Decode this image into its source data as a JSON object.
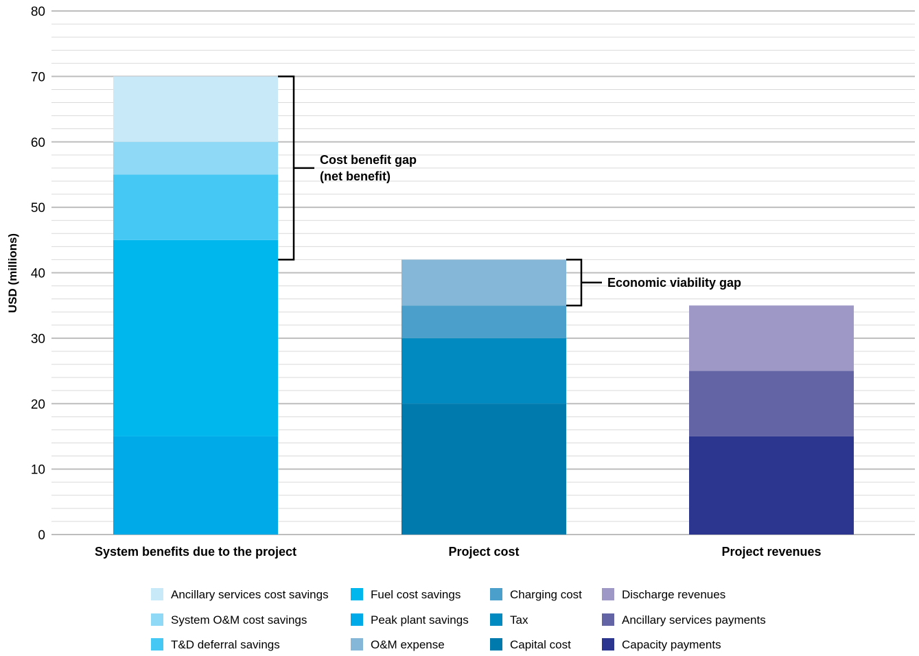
{
  "chart_data": {
    "type": "bar",
    "stacked": true,
    "ylabel": "USD (millions)",
    "xlabel": "",
    "ylim": [
      0,
      80
    ],
    "yticks": [
      0,
      10,
      20,
      30,
      40,
      50,
      60,
      70,
      80
    ],
    "grid": true,
    "legend_position": "bottom",
    "categories": [
      "System benefits due to the project",
      "Project cost",
      "Project revenues"
    ],
    "stacks": [
      {
        "category": "System benefits due to the project",
        "segments": [
          {
            "name": "Peak plant savings",
            "value": 15,
            "color": "#00A9E8"
          },
          {
            "name": "Fuel cost savings",
            "value": 30,
            "color": "#00B7ED"
          },
          {
            "name": "T&D deferral savings",
            "value": 10,
            "color": "#45C8F3"
          },
          {
            "name": "System O&M cost savings",
            "value": 5,
            "color": "#8FD9F6"
          },
          {
            "name": "Ancillary services cost savings",
            "value": 10,
            "color": "#C7E9F8"
          }
        ]
      },
      {
        "category": "Project cost",
        "segments": [
          {
            "name": "Capital cost",
            "value": 20,
            "color": "#0079AD"
          },
          {
            "name": "Tax",
            "value": 10,
            "color": "#008ABF"
          },
          {
            "name": "Charging cost",
            "value": 5,
            "color": "#4AA0CA"
          },
          {
            "name": "O&M expense",
            "value": 7,
            "color": "#85B8D8"
          }
        ]
      },
      {
        "category": "Project revenues",
        "segments": [
          {
            "name": "Capacity payments",
            "value": 15,
            "color": "#2D368E"
          },
          {
            "name": "Ancillary services payments",
            "value": 10,
            "color": "#6364A6"
          },
          {
            "name": "Discharge revenues",
            "value": 10,
            "color": "#9D98C6"
          }
        ]
      }
    ],
    "annotations": [
      {
        "lines": [
          "Cost benefit gap",
          "(net benefit)"
        ],
        "from": 42,
        "to": 70
      },
      {
        "lines": [
          "Economic viability gap"
        ],
        "from": 35,
        "to": 42
      }
    ],
    "legend": [
      {
        "label": "Ancillary services cost savings",
        "color": "#C7E9F8"
      },
      {
        "label": "System O&M cost savings",
        "color": "#8FD9F6"
      },
      {
        "label": "T&D deferral savings",
        "color": "#45C8F3"
      },
      {
        "label": "Fuel cost savings",
        "color": "#00B7ED"
      },
      {
        "label": "Peak plant savings",
        "color": "#00A9E8"
      },
      {
        "label": "O&M expense",
        "color": "#85B8D8"
      },
      {
        "label": "Charging cost",
        "color": "#4AA0CA"
      },
      {
        "label": "Tax",
        "color": "#008ABF"
      },
      {
        "label": "Capital cost",
        "color": "#0079AD"
      },
      {
        "label": "Discharge revenues",
        "color": "#9D98C6"
      },
      {
        "label": "Ancillary services payments",
        "color": "#6364A6"
      },
      {
        "label": "Capacity payments",
        "color": "#2D368E"
      }
    ]
  }
}
